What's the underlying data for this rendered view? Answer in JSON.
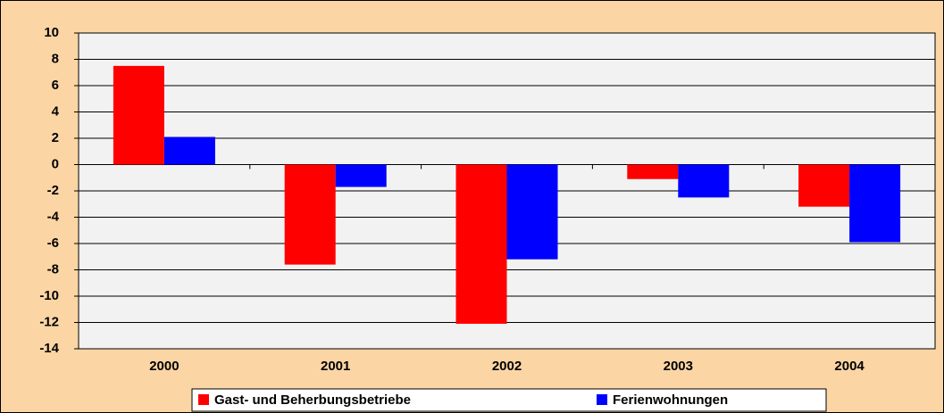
{
  "chart_data": {
    "type": "bar",
    "categories": [
      "2000",
      "2001",
      "2002",
      "2003",
      "2004"
    ],
    "series": [
      {
        "name": "Gast- und Beherbungsbetriebe",
        "color": "#ff0000",
        "values": [
          7.5,
          -7.6,
          -12.1,
          -1.1,
          -3.2
        ]
      },
      {
        "name": "Ferienwohnungen",
        "color": "#0000ff",
        "values": [
          2.1,
          -1.7,
          -7.2,
          -2.5,
          -5.9
        ]
      }
    ],
    "ylim": [
      -14,
      10
    ],
    "yticks": [
      -14,
      -12,
      -10,
      -8,
      -6,
      -4,
      -2,
      0,
      2,
      4,
      6,
      8,
      10
    ],
    "grid": true,
    "legend": "bottom"
  }
}
